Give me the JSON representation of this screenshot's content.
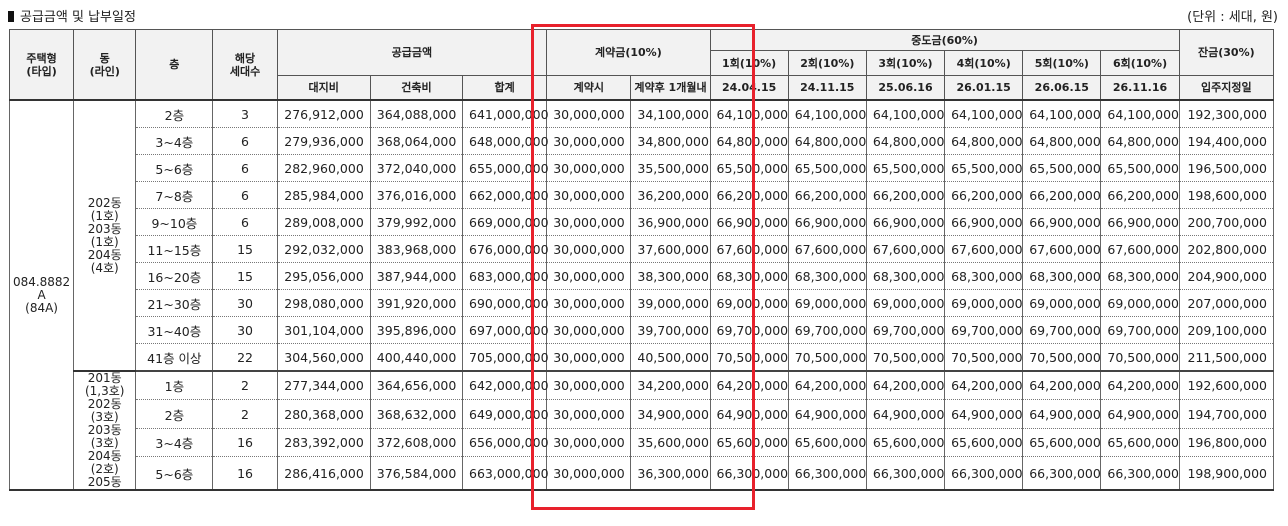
{
  "header": {
    "title": "공급금액 및 납부일정",
    "unit": "(단위 : 세대, 원)"
  },
  "columns": {
    "type": [
      "주택형",
      "(타입)"
    ],
    "dong": [
      "동",
      "(라인)"
    ],
    "floor": "층",
    "units": [
      "해당",
      "세대수"
    ],
    "supply": "공급금액",
    "land": "대지비",
    "building": "건축비",
    "total": "합계",
    "deposit": "계약금(10%)",
    "deposit_at": "계약시",
    "deposit_after": "계약후 1개월내",
    "middle": "중도금(60%)",
    "middle_rounds": [
      {
        "label": "1회(10%)",
        "date": "24.04.15"
      },
      {
        "label": "2회(10%)",
        "date": "24.11.15"
      },
      {
        "label": "3회(10%)",
        "date": "25.06.16"
      },
      {
        "label": "4회(10%)",
        "date": "26.01.15"
      },
      {
        "label": "5회(10%)",
        "date": "26.06.15"
      },
      {
        "label": "6회(10%)",
        "date": "26.11.16"
      }
    ],
    "balance": "잔금(30%)",
    "balance_date": "입주지정일"
  },
  "type_cell": [
    "084.8882",
    "A",
    "(84A)"
  ],
  "group1_dong": [
    "202동",
    "(1호)",
    "203동",
    "(1호)",
    "204동",
    "(4호)"
  ],
  "group2_dong": [
    "201동",
    "(1,3호)",
    "202동",
    "(3호)",
    "203동",
    "(3호)",
    "204동",
    "(2호)",
    "205동"
  ],
  "rows": [
    {
      "floor": "2층",
      "units": "3",
      "land": "276,912,000",
      "building": "364,088,000",
      "total": "641,000,000",
      "dep1": "30,000,000",
      "dep2": "34,100,000",
      "mid": "64,100,000",
      "balance": "192,300,000"
    },
    {
      "floor": "3~4층",
      "units": "6",
      "land": "279,936,000",
      "building": "368,064,000",
      "total": "648,000,000",
      "dep1": "30,000,000",
      "dep2": "34,800,000",
      "mid": "64,800,000",
      "balance": "194,400,000"
    },
    {
      "floor": "5~6층",
      "units": "6",
      "land": "282,960,000",
      "building": "372,040,000",
      "total": "655,000,000",
      "dep1": "30,000,000",
      "dep2": "35,500,000",
      "mid": "65,500,000",
      "balance": "196,500,000"
    },
    {
      "floor": "7~8층",
      "units": "6",
      "land": "285,984,000",
      "building": "376,016,000",
      "total": "662,000,000",
      "dep1": "30,000,000",
      "dep2": "36,200,000",
      "mid": "66,200,000",
      "balance": "198,600,000"
    },
    {
      "floor": "9~10층",
      "units": "6",
      "land": "289,008,000",
      "building": "379,992,000",
      "total": "669,000,000",
      "dep1": "30,000,000",
      "dep2": "36,900,000",
      "mid": "66,900,000",
      "balance": "200,700,000"
    },
    {
      "floor": "11~15층",
      "units": "15",
      "land": "292,032,000",
      "building": "383,968,000",
      "total": "676,000,000",
      "dep1": "30,000,000",
      "dep2": "37,600,000",
      "mid": "67,600,000",
      "balance": "202,800,000"
    },
    {
      "floor": "16~20층",
      "units": "15",
      "land": "295,056,000",
      "building": "387,944,000",
      "total": "683,000,000",
      "dep1": "30,000,000",
      "dep2": "38,300,000",
      "mid": "68,300,000",
      "balance": "204,900,000"
    },
    {
      "floor": "21~30층",
      "units": "30",
      "land": "298,080,000",
      "building": "391,920,000",
      "total": "690,000,000",
      "dep1": "30,000,000",
      "dep2": "39,000,000",
      "mid": "69,000,000",
      "balance": "207,000,000"
    },
    {
      "floor": "31~40층",
      "units": "30",
      "land": "301,104,000",
      "building": "395,896,000",
      "total": "697,000,000",
      "dep1": "30,000,000",
      "dep2": "39,700,000",
      "mid": "69,700,000",
      "balance": "209,100,000"
    },
    {
      "floor": "41층 이상",
      "units": "22",
      "land": "304,560,000",
      "building": "400,440,000",
      "total": "705,000,000",
      "dep1": "30,000,000",
      "dep2": "40,500,000",
      "mid": "70,500,000",
      "balance": "211,500,000"
    },
    {
      "floor": "1층",
      "units": "2",
      "land": "277,344,000",
      "building": "364,656,000",
      "total": "642,000,000",
      "dep1": "30,000,000",
      "dep2": "34,200,000",
      "mid": "64,200,000",
      "balance": "192,600,000"
    },
    {
      "floor": "2층",
      "units": "2",
      "land": "280,368,000",
      "building": "368,632,000",
      "total": "649,000,000",
      "dep1": "30,000,000",
      "dep2": "34,900,000",
      "mid": "64,900,000",
      "balance": "194,700,000"
    },
    {
      "floor": "3~4층",
      "units": "16",
      "land": "283,392,000",
      "building": "372,608,000",
      "total": "656,000,000",
      "dep1": "30,000,000",
      "dep2": "35,600,000",
      "mid": "65,600,000",
      "balance": "196,800,000"
    },
    {
      "floor": "5~6층",
      "units": "16",
      "land": "286,416,000",
      "building": "376,584,000",
      "total": "663,000,000",
      "dep1": "30,000,000",
      "dep2": "36,300,000",
      "mid": "66,300,000",
      "balance": "198,900,000"
    }
  ],
  "colors": {
    "highlight": "#e8212c",
    "header_bg": "#f2f2f2"
  }
}
